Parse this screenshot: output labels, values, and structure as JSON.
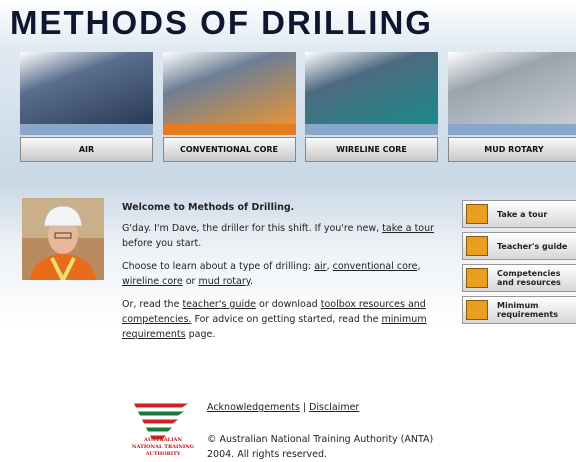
{
  "header": {
    "title": "METHODS OF DRILLING"
  },
  "tabs": [
    "AIR",
    "CONVENTIONAL CORE",
    "WIRELINE CORE",
    "MUD ROTARY"
  ],
  "welcome": {
    "heading": "Welcome to Methods of Drilling.",
    "paragraphs": [
      [
        {
          "text": "G'day. I'm Dave, the driller for this shift. If you're new, "
        },
        {
          "text": "take a tour",
          "link": true
        },
        {
          "text": " before you start."
        }
      ],
      [
        {
          "text": "Choose to learn about a type of drilling: "
        },
        {
          "text": "air",
          "link": true
        },
        {
          "text": ", "
        },
        {
          "text": "conventional core",
          "link": true
        },
        {
          "text": ", "
        },
        {
          "text": "wireline core",
          "link": true
        },
        {
          "text": " or "
        },
        {
          "text": "mud rotary",
          "link": true
        },
        {
          "text": "."
        }
      ],
      [
        {
          "text": "Or, read the "
        },
        {
          "text": "teacher's guide",
          "link": true
        },
        {
          "text": " or download "
        },
        {
          "text": "toolbox resources and competencies.",
          "link": true
        },
        {
          "text": " For advice on getting started, read the "
        },
        {
          "text": "minimum requirements",
          "link": true
        },
        {
          "text": " page."
        }
      ]
    ]
  },
  "side_buttons": [
    "Take a tour",
    "Teacher's guide",
    "Competencies and resources",
    "Minimum requirements"
  ],
  "logo": {
    "lines": [
      "AUSTRALIAN",
      "NATIONAL TRAINING",
      "AUTHORITY"
    ]
  },
  "footer": {
    "links": [
      {
        "text": "Acknowledgements",
        "link": true
      },
      {
        "text": " | "
      },
      {
        "text": "Disclaimer",
        "link": true
      }
    ],
    "copyright": "© Australian National Training Authority (ANTA) 2004. All rights reserved."
  }
}
